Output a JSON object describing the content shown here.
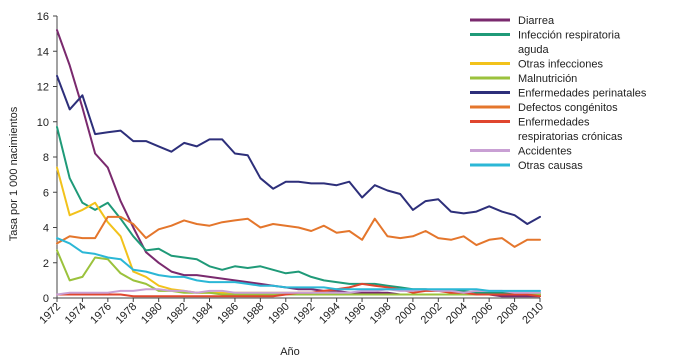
{
  "chart_data": {
    "type": "line",
    "xlabel": "Año",
    "ylabel": "Tasa por 1 000 nacimientos",
    "xlim": [
      1972,
      2010
    ],
    "ylim": [
      0,
      16
    ],
    "x_ticks": [
      "1972",
      "1974",
      "1976",
      "1978",
      "1980",
      "1982",
      "1984",
      "1986",
      "1988",
      "1990",
      "1992",
      "1994",
      "1996",
      "1998",
      "2000",
      "2002",
      "2004",
      "2006",
      "2008",
      "2010"
    ],
    "y_ticks": [
      "0",
      "2",
      "4",
      "6",
      "8",
      "10",
      "12",
      "14",
      "16"
    ],
    "grid": false,
    "legend_position": "right",
    "x": [
      1972,
      1973,
      1974,
      1975,
      1976,
      1977,
      1978,
      1979,
      1980,
      1981,
      1982,
      1983,
      1984,
      1985,
      1986,
      1987,
      1988,
      1989,
      1990,
      1991,
      1992,
      1993,
      1994,
      1995,
      1996,
      1997,
      1998,
      1999,
      2000,
      2001,
      2002,
      2003,
      2004,
      2005,
      2006,
      2007,
      2008,
      2009,
      2010
    ],
    "series": [
      {
        "name": "Diarrea",
        "color": "#7a2a6e",
        "values": [
          15.2,
          13.2,
          10.8,
          8.2,
          7.4,
          5.5,
          4.0,
          2.6,
          2.0,
          1.5,
          1.3,
          1.3,
          1.2,
          1.1,
          1.0,
          0.9,
          0.8,
          0.7,
          0.6,
          0.5,
          0.5,
          0.4,
          0.4,
          0.3,
          0.3,
          0.3,
          0.3,
          0.2,
          0.2,
          0.2,
          0.2,
          0.2,
          0.2,
          0.2,
          0.2,
          0.1,
          0.1,
          0.1,
          0.1
        ]
      },
      {
        "name": "Infección respiratoria aguda",
        "color": "#1f9a78",
        "values": [
          9.7,
          6.8,
          5.4,
          5.0,
          5.4,
          4.5,
          3.5,
          2.7,
          2.8,
          2.4,
          2.3,
          2.2,
          1.8,
          1.6,
          1.8,
          1.7,
          1.8,
          1.6,
          1.4,
          1.5,
          1.2,
          1.0,
          0.9,
          0.8,
          0.8,
          0.8,
          0.7,
          0.6,
          0.5,
          0.5,
          0.4,
          0.4,
          0.4,
          0.3,
          0.3,
          0.3,
          0.3,
          0.3,
          0.3
        ]
      },
      {
        "name": "Otras infecciones",
        "color": "#f2c21b",
        "values": [
          7.4,
          4.7,
          5.0,
          5.4,
          4.3,
          3.5,
          1.5,
          1.2,
          0.7,
          0.5,
          0.4,
          0.3,
          0.3,
          0.3,
          0.3,
          0.3,
          0.3,
          0.3,
          0.3,
          0.3,
          0.3,
          0.3,
          0.3,
          0.2,
          0.2,
          0.2,
          0.2,
          0.2,
          0.2,
          0.2,
          0.2,
          0.2,
          0.2,
          0.2,
          0.2,
          0.2,
          0.2,
          0.2,
          0.2
        ]
      },
      {
        "name": "Malnutrición",
        "color": "#9bc23c",
        "values": [
          2.7,
          1.0,
          1.2,
          2.3,
          2.2,
          1.4,
          1.0,
          0.8,
          0.4,
          0.4,
          0.3,
          0.3,
          0.3,
          0.2,
          0.2,
          0.2,
          0.2,
          0.2,
          0.2,
          0.2,
          0.2,
          0.2,
          0.2,
          0.2,
          0.2,
          0.2,
          0.2,
          0.2,
          0.2,
          0.2,
          0.2,
          0.2,
          0.2,
          0.2,
          0.2,
          0.2,
          0.2,
          0.2,
          0.2
        ]
      },
      {
        "name": "Enfermedades perinatales",
        "color": "#2d2f7a",
        "values": [
          12.6,
          10.7,
          11.5,
          9.3,
          9.4,
          9.5,
          8.9,
          8.9,
          8.6,
          8.3,
          8.8,
          8.6,
          9.0,
          9.0,
          8.2,
          8.1,
          6.8,
          6.2,
          6.6,
          6.6,
          6.5,
          6.5,
          6.4,
          6.6,
          5.7,
          6.4,
          6.1,
          5.9,
          5.0,
          5.5,
          5.6,
          4.9,
          4.8,
          4.9,
          5.2,
          4.9,
          4.7,
          4.2,
          4.6
        ]
      },
      {
        "name": "Defectos congénitos",
        "color": "#e4762c",
        "values": [
          3.1,
          3.5,
          3.4,
          3.4,
          4.6,
          4.6,
          4.2,
          3.4,
          3.9,
          4.1,
          4.4,
          4.2,
          4.1,
          4.3,
          4.4,
          4.5,
          4.0,
          4.2,
          4.1,
          4.0,
          3.8,
          4.1,
          3.7,
          3.8,
          3.3,
          4.5,
          3.5,
          3.4,
          3.5,
          3.8,
          3.4,
          3.3,
          3.5,
          3.0,
          3.3,
          3.4,
          2.9,
          3.3,
          3.3
        ]
      },
      {
        "name": "Enfermedades respiratorias crónicas",
        "color": "#e0462e",
        "values": [
          0.2,
          0.2,
          0.2,
          0.2,
          0.2,
          0.2,
          0.1,
          0.1,
          0.1,
          0.1,
          0.1,
          0.1,
          0.1,
          0.1,
          0.1,
          0.1,
          0.1,
          0.1,
          0.2,
          0.3,
          0.3,
          0.4,
          0.5,
          0.6,
          0.8,
          0.7,
          0.6,
          0.5,
          0.3,
          0.4,
          0.4,
          0.3,
          0.3,
          0.2,
          0.2,
          0.2,
          0.2,
          0.2,
          0.1
        ]
      },
      {
        "name": "Accidentes",
        "color": "#c9a0d4",
        "values": [
          0.2,
          0.3,
          0.3,
          0.3,
          0.3,
          0.4,
          0.4,
          0.5,
          0.5,
          0.4,
          0.4,
          0.3,
          0.4,
          0.4,
          0.3,
          0.3,
          0.3,
          0.3,
          0.3,
          0.3,
          0.3,
          0.3,
          0.3,
          0.3,
          0.4,
          0.4,
          0.5,
          0.4,
          0.4,
          0.5,
          0.4,
          0.4,
          0.3,
          0.4,
          0.4,
          0.4,
          0.3,
          0.3,
          0.3
        ]
      },
      {
        "name": "Otras causas",
        "color": "#2bb7d6",
        "values": [
          3.4,
          3.1,
          2.6,
          2.5,
          2.3,
          2.2,
          1.6,
          1.5,
          1.3,
          1.2,
          1.2,
          1.0,
          0.9,
          0.9,
          0.9,
          0.8,
          0.7,
          0.7,
          0.6,
          0.6,
          0.6,
          0.6,
          0.5,
          0.5,
          0.5,
          0.5,
          0.5,
          0.5,
          0.5,
          0.5,
          0.5,
          0.5,
          0.5,
          0.5,
          0.4,
          0.4,
          0.4,
          0.4,
          0.4
        ]
      }
    ],
    "legend_lines": [
      [
        "Diarrea"
      ],
      [
        "Infección respiratoria",
        "aguda"
      ],
      [
        "Otras infecciones"
      ],
      [
        "Malnutrición"
      ],
      [
        "Enfermedades perinatales"
      ],
      [
        "Defectos congénitos"
      ],
      [
        "Enfermedades",
        "respiratorias crónicas"
      ],
      [
        "Accidentes"
      ],
      [
        "Otras causas"
      ]
    ]
  }
}
